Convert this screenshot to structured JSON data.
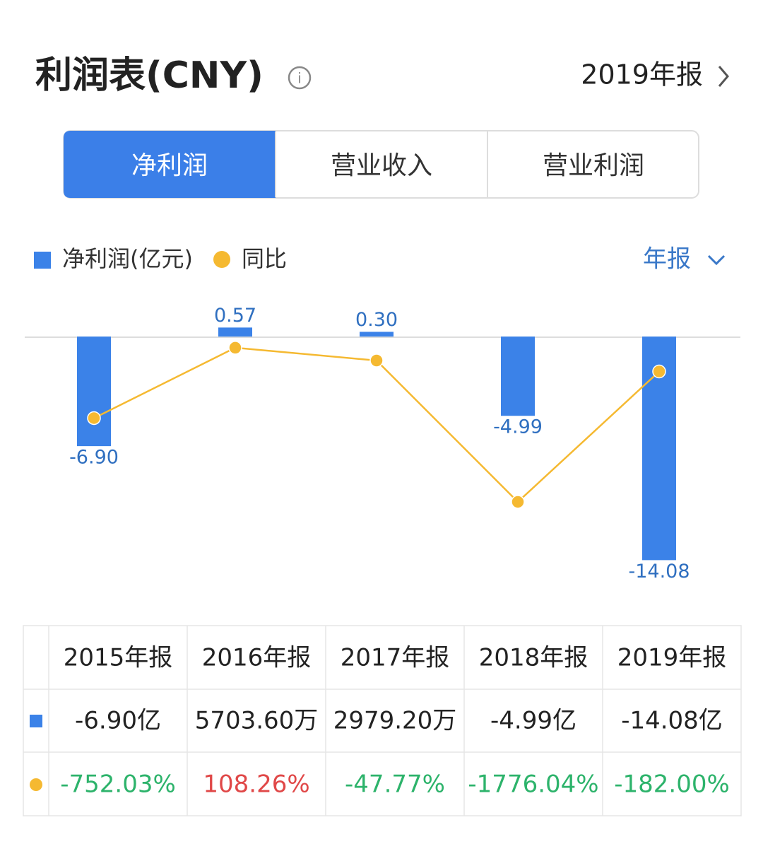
{
  "header": {
    "title": "利润表(CNY)",
    "period": "2019年报"
  },
  "tabs": {
    "items": [
      "净利润",
      "营业收入",
      "营业利润"
    ],
    "active": 0
  },
  "controls": {
    "period_select": "年报"
  },
  "chart_data": {
    "type": "bar",
    "categories": [
      "2015年报",
      "2016年报",
      "2017年报",
      "2018年报",
      "2019年报"
    ],
    "series": [
      {
        "name": "净利润(亿元)",
        "type": "bar",
        "color": "#3b82e8",
        "values": [
          -6.9,
          0.57,
          0.3,
          -4.99,
          -14.08
        ],
        "value_labels": [
          "-6.90",
          "0.57",
          "0.30",
          "-4.99",
          "-14.08"
        ]
      },
      {
        "name": "同比",
        "type": "line",
        "axis": "y2",
        "color": "#f5b931",
        "values": [
          -752.03,
          108.26,
          -47.77,
          -1776.04,
          -182
        ]
      }
    ],
    "ylim": [
      -16.2,
      2.5
    ],
    "y2lim": [
      -2900,
      730
    ]
  },
  "table": {
    "rows": [
      [
        "-6.90亿",
        "5703.60万",
        "2979.20万",
        "-4.99亿",
        "-14.08亿"
      ],
      [
        "-752.03%",
        "108.26%",
        "-47.77%",
        "-1776.04%",
        "-182.00%"
      ]
    ]
  }
}
